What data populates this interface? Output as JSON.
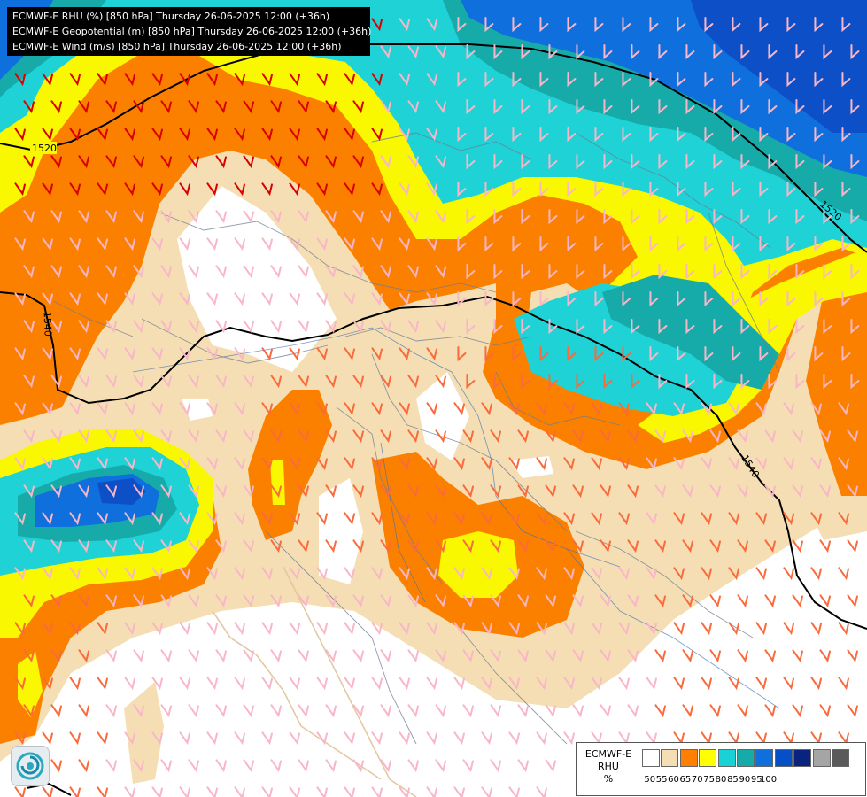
{
  "header": {
    "lines": [
      "ECMWF-E RHU (%) [850 hPa] Thursday 26-06-2025 12:00 (+36h)",
      "ECMWF-E Geopotential (m) [850 hPa] Thursday 26-06-2025 12:00 (+36h)",
      "ECMWF-E Wind (m/s) [850 hPa] Thursday 26-06-2025 12:00 (+36h)"
    ]
  },
  "contours": {
    "labels": [
      "1520",
      "1520",
      "1540",
      "1540"
    ]
  },
  "legend": {
    "title_lines": [
      "ECMWF-E",
      "RHU",
      "%"
    ],
    "ticks": [
      "50",
      "55",
      "60",
      "65",
      "70",
      "75",
      "80",
      "85",
      "90",
      "95",
      "100"
    ],
    "colors": [
      "#ffffff",
      "#f5deb3",
      "#ff8000",
      "#ffff00",
      "#19d2d6",
      "#16aaa9",
      "#0f6fdc",
      "#0550c8",
      "#08247e",
      "#a5a5a5",
      "#5a5a5a"
    ]
  },
  "map_colors": {
    "land_white": "#ffffff",
    "tan": "#f5deb3",
    "orange": "#fc8000",
    "yellow": "#f9f800",
    "cyan": "#1ed2d5",
    "teal": "#16aaa9",
    "blue": "#0f6fdc",
    "darkblue": "#0d4fc6",
    "wind_light": "#f8b6c8",
    "wind_medium": "#f96a3c",
    "wind_strong": "#d90000",
    "contour": "#000000"
  },
  "icons": {
    "logo": "ecmwf-logo-icon"
  }
}
